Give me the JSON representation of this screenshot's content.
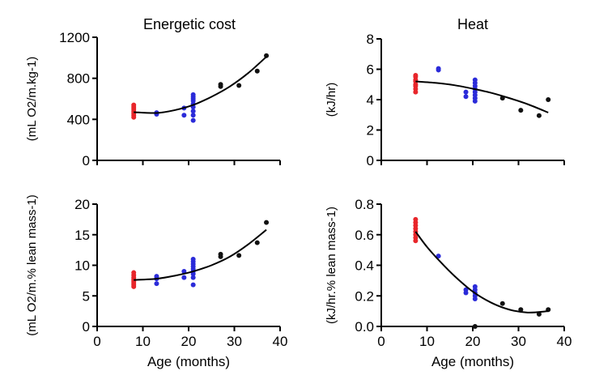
{
  "colors": {
    "group1": "#e8262b",
    "group2": "#2b2bd9",
    "group3": "#111111",
    "fit": "#000000"
  },
  "chart_data": [
    {
      "type": "scatter",
      "title": "Energetic cost",
      "ylabel": "(mL O2/m.kg-1)",
      "xlabel": "",
      "xlim": [
        0,
        40
      ],
      "ylim": [
        0,
        1200
      ],
      "yticks": [
        "0",
        "400",
        "800",
        "1200"
      ],
      "xticks": [
        0,
        10,
        20,
        30,
        40
      ],
      "xtick_labels_shown": false,
      "grid": false,
      "groups": [
        {
          "color": "group1",
          "x": [
            8,
            8,
            8,
            8,
            8,
            8,
            8
          ],
          "y": [
            420,
            440,
            460,
            480,
            500,
            520,
            540
          ]
        },
        {
          "color": "group2",
          "x": [
            13,
            13,
            19,
            19,
            21,
            21,
            21,
            21,
            21,
            21,
            21,
            21,
            21
          ],
          "y": [
            450,
            465,
            440,
            510,
            390,
            440,
            480,
            520,
            550,
            580,
            600,
            620,
            640
          ]
        },
        {
          "color": "group3",
          "x": [
            27,
            27,
            31,
            35,
            37
          ],
          "y": [
            720,
            740,
            730,
            870,
            1020
          ]
        }
      ],
      "fit": {
        "x": [
          8,
          13,
          17,
          21,
          25,
          29,
          33,
          37
        ],
        "y": [
          470,
          462,
          490,
          540,
          620,
          720,
          850,
          1010
        ]
      }
    },
    {
      "type": "scatter",
      "title": "Heat",
      "ylabel": "(kJ/hr)",
      "xlabel": "",
      "xlim": [
        0,
        40
      ],
      "ylim": [
        0,
        8
      ],
      "yticks": [
        "0",
        "2",
        "4",
        "6",
        "8"
      ],
      "xticks": [
        0,
        10,
        20,
        30,
        40
      ],
      "xtick_labels_shown": false,
      "grid": false,
      "groups": [
        {
          "color": "group1",
          "x": [
            7.5,
            7.5,
            7.5,
            7.5,
            7.5,
            7.5,
            7.5,
            7.5
          ],
          "y": [
            4.5,
            4.7,
            4.9,
            5.0,
            5.2,
            5.3,
            5.5,
            5.6
          ]
        },
        {
          "color": "group2",
          "x": [
            12.5,
            12.5,
            18.5,
            18.5,
            20.5,
            20.5,
            20.5,
            20.5,
            20.5,
            20.5,
            20.5,
            20.5
          ],
          "y": [
            5.95,
            6.05,
            4.2,
            4.5,
            3.9,
            4.1,
            4.3,
            4.5,
            4.7,
            4.9,
            5.1,
            5.3
          ]
        },
        {
          "color": "group3",
          "x": [
            26.5,
            30.5,
            34.5,
            36.5
          ],
          "y": [
            4.1,
            3.3,
            2.95,
            4.0
          ]
        }
      ],
      "fit": {
        "x": [
          7.5,
          12,
          16,
          20,
          24,
          28,
          32,
          36.5
        ],
        "y": [
          5.2,
          5.1,
          4.95,
          4.72,
          4.45,
          4.1,
          3.7,
          3.15
        ]
      }
    },
    {
      "type": "scatter",
      "title": "",
      "ylabel": "(mL O2/m.% lean mass-1)",
      "xlabel": "Age (months)",
      "xlim": [
        0,
        40
      ],
      "ylim": [
        0,
        20
      ],
      "yticks": [
        "0",
        "5",
        "10",
        "15",
        "20"
      ],
      "xticks": [
        0,
        10,
        20,
        30,
        40
      ],
      "xtick_labels": [
        "0",
        "10",
        "20",
        "30",
        "40"
      ],
      "grid": false,
      "groups": [
        {
          "color": "group1",
          "x": [
            8,
            8,
            8,
            8,
            8,
            8,
            8,
            8
          ],
          "y": [
            6.5,
            6.8,
            7.1,
            7.4,
            7.7,
            8.0,
            8.4,
            8.8
          ]
        },
        {
          "color": "group2",
          "x": [
            13,
            13,
            13,
            19,
            19,
            21,
            21,
            21,
            21,
            21,
            21,
            21,
            21,
            21
          ],
          "y": [
            7.0,
            7.8,
            8.2,
            8.0,
            9.0,
            6.8,
            8.0,
            8.6,
            9.0,
            9.4,
            9.8,
            10.2,
            10.6,
            11.0
          ]
        },
        {
          "color": "group3",
          "x": [
            27,
            27,
            31,
            35,
            37
          ],
          "y": [
            11.4,
            11.8,
            11.6,
            13.7,
            17.0
          ]
        }
      ],
      "fit": {
        "x": [
          8,
          13,
          17,
          21,
          25,
          29,
          33,
          37
        ],
        "y": [
          7.6,
          7.8,
          8.3,
          9.0,
          10.0,
          11.4,
          13.4,
          15.8
        ]
      }
    },
    {
      "type": "scatter",
      "title": "",
      "ylabel": "(kJ/hr.% lean mass-1)",
      "xlabel": "Age (months)",
      "xlim": [
        0,
        40
      ],
      "ylim": [
        0,
        0.8
      ],
      "yticks": [
        "0.0",
        "0.2",
        "0.4",
        "0.6",
        "0.8"
      ],
      "xticks": [
        0,
        10,
        20,
        30,
        40
      ],
      "xtick_labels": [
        "0",
        "10",
        "20",
        "30",
        "40"
      ],
      "grid": false,
      "groups": [
        {
          "color": "group1",
          "x": [
            7.5,
            7.5,
            7.5,
            7.5,
            7.5,
            7.5,
            7.5,
            7.5
          ],
          "y": [
            0.56,
            0.58,
            0.6,
            0.62,
            0.64,
            0.66,
            0.68,
            0.7
          ]
        },
        {
          "color": "group2",
          "x": [
            12.5,
            18.5,
            18.5,
            20.5,
            20.5,
            20.5,
            20.5,
            20.5
          ],
          "y": [
            0.46,
            0.22,
            0.24,
            0.18,
            0.2,
            0.22,
            0.24,
            0.26
          ]
        },
        {
          "color": "group3",
          "x": [
            20.5,
            26.5,
            30.5,
            34.5,
            36.5
          ],
          "y": [
            0.0,
            0.15,
            0.11,
            0.08,
            0.11
          ]
        }
      ],
      "fit": {
        "x": [
          7.5,
          10,
          13,
          16,
          20,
          24,
          28,
          32,
          36.5
        ],
        "y": [
          0.62,
          0.52,
          0.42,
          0.33,
          0.228,
          0.156,
          0.11,
          0.091,
          0.1
        ]
      }
    }
  ]
}
